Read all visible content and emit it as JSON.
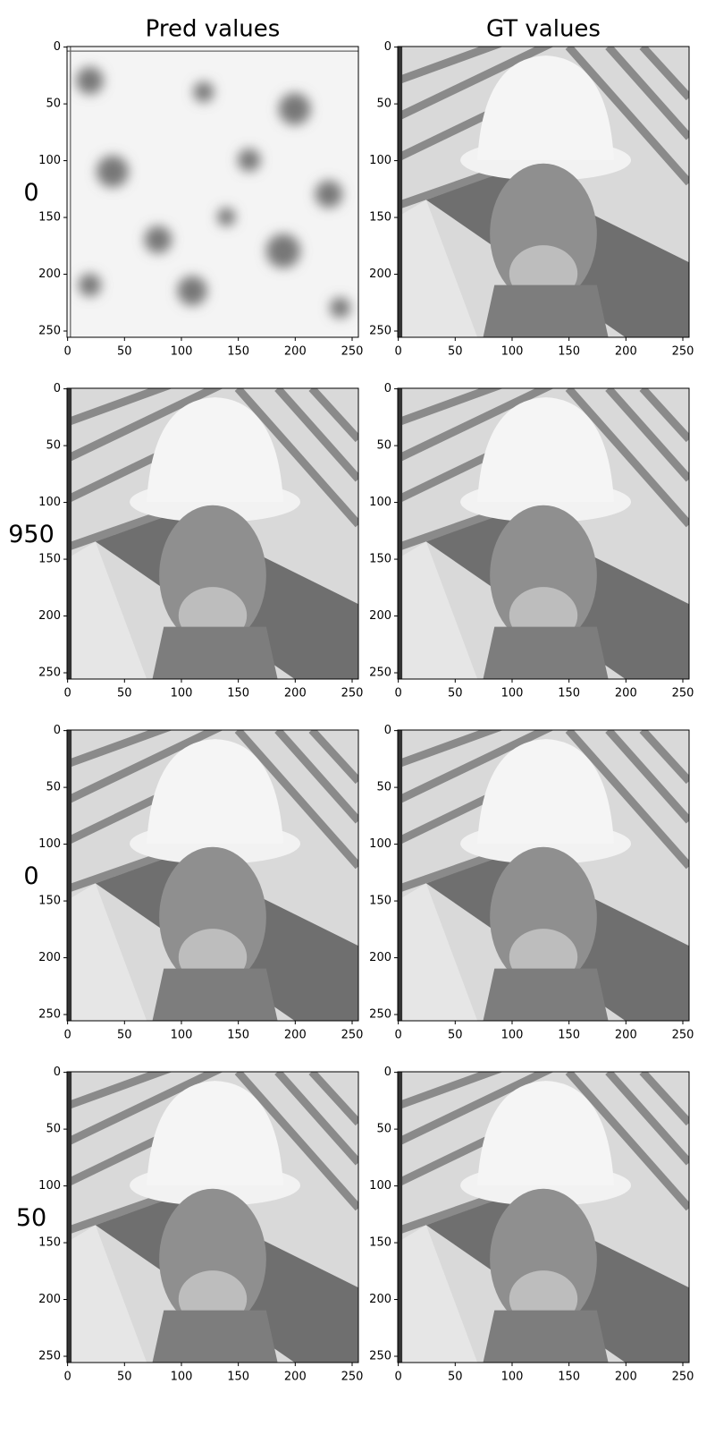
{
  "chart_data": [
    {
      "type": "image",
      "title": "Pred values",
      "ylabel": "0",
      "xlim": [
        -0.5,
        255.5
      ],
      "ylim": [
        255.5,
        -0.5
      ],
      "xticks": [
        0,
        50,
        100,
        150,
        200,
        250
      ],
      "yticks": [
        0,
        50,
        100,
        150,
        200,
        250
      ]
    },
    {
      "type": "image",
      "title": "GT values",
      "xlim": [
        -0.5,
        255.5
      ],
      "ylim": [
        255.5,
        -0.5
      ],
      "xticks": [
        0,
        50,
        100,
        150,
        200,
        250
      ],
      "yticks": [
        0,
        50,
        100,
        150,
        200,
        250
      ]
    },
    {
      "type": "image",
      "ylabel": "950",
      "xlim": [
        -0.5,
        255.5
      ],
      "ylim": [
        255.5,
        -0.5
      ],
      "xticks": [
        0,
        50,
        100,
        150,
        200,
        250
      ],
      "yticks": [
        0,
        50,
        100,
        150,
        200,
        250
      ]
    },
    {
      "type": "image",
      "xlim": [
        -0.5,
        255.5
      ],
      "ylim": [
        255.5,
        -0.5
      ],
      "xticks": [
        0,
        50,
        100,
        150,
        200,
        250
      ],
      "yticks": [
        0,
        50,
        100,
        150,
        200,
        250
      ]
    },
    {
      "type": "image",
      "ylabel": "0",
      "xlim": [
        -0.5,
        255.5
      ],
      "ylim": [
        255.5,
        -0.5
      ],
      "xticks": [
        0,
        50,
        100,
        150,
        200,
        250
      ],
      "yticks": [
        0,
        50,
        100,
        150,
        200,
        250
      ]
    },
    {
      "type": "image",
      "xlim": [
        -0.5,
        255.5
      ],
      "ylim": [
        255.5,
        -0.5
      ],
      "xticks": [
        0,
        50,
        100,
        150,
        200,
        250
      ],
      "yticks": [
        0,
        50,
        100,
        150,
        200,
        250
      ]
    },
    {
      "type": "image",
      "ylabel": "50",
      "xlim": [
        -0.5,
        255.5
      ],
      "ylim": [
        255.5,
        -0.5
      ],
      "xticks": [
        0,
        50,
        100,
        150,
        200,
        250
      ],
      "yticks": [
        0,
        50,
        100,
        150,
        200,
        250
      ]
    },
    {
      "type": "image",
      "xlim": [
        -0.5,
        255.5
      ],
      "ylim": [
        255.5,
        -0.5
      ],
      "xticks": [
        0,
        50,
        100,
        150,
        200,
        250
      ],
      "yticks": [
        0,
        50,
        100,
        150,
        200,
        250
      ]
    }
  ]
}
